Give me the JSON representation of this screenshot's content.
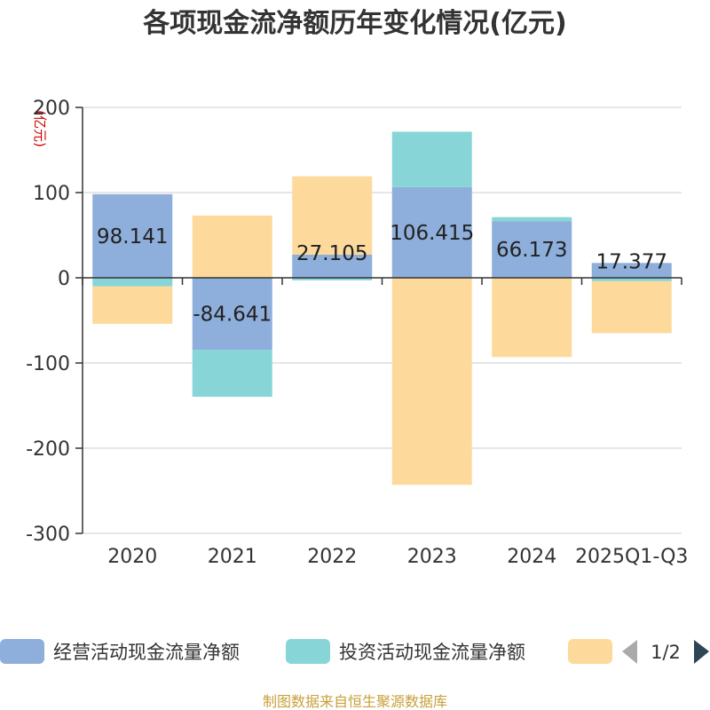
{
  "chart_data": {
    "type": "bar",
    "stacked": true,
    "title": "各项现金流净额历年变化情况(亿元)",
    "unit_label": "(亿元)",
    "categories": [
      "2020",
      "2021",
      "2022",
      "2023",
      "2024",
      "2025Q1-Q3"
    ],
    "ylim": [
      -300,
      200
    ],
    "yticks": [
      200,
      100,
      0,
      -100,
      -200,
      -300
    ],
    "grid": true,
    "legend_position": "bottom",
    "series": [
      {
        "name": "经营活动现金流量净额",
        "color": "#8eaedb",
        "values": [
          98.141,
          -84.641,
          27.105,
          106.415,
          66.173,
          17.377
        ],
        "labels": [
          "98.141",
          "-84.641",
          "27.105",
          "106.415",
          "66.173",
          "17.377"
        ]
      },
      {
        "name": "投资活动现金流量净额",
        "color": "#88d5d8",
        "values": [
          -10,
          -55,
          -3,
          65,
          5,
          -4
        ]
      },
      {
        "name": "",
        "color": "#fdd99b",
        "values": [
          -44,
          73,
          92,
          -243,
          -93,
          -61
        ]
      }
    ],
    "pager": "1/2",
    "source": "制图数据来自恒生聚源数据库"
  }
}
